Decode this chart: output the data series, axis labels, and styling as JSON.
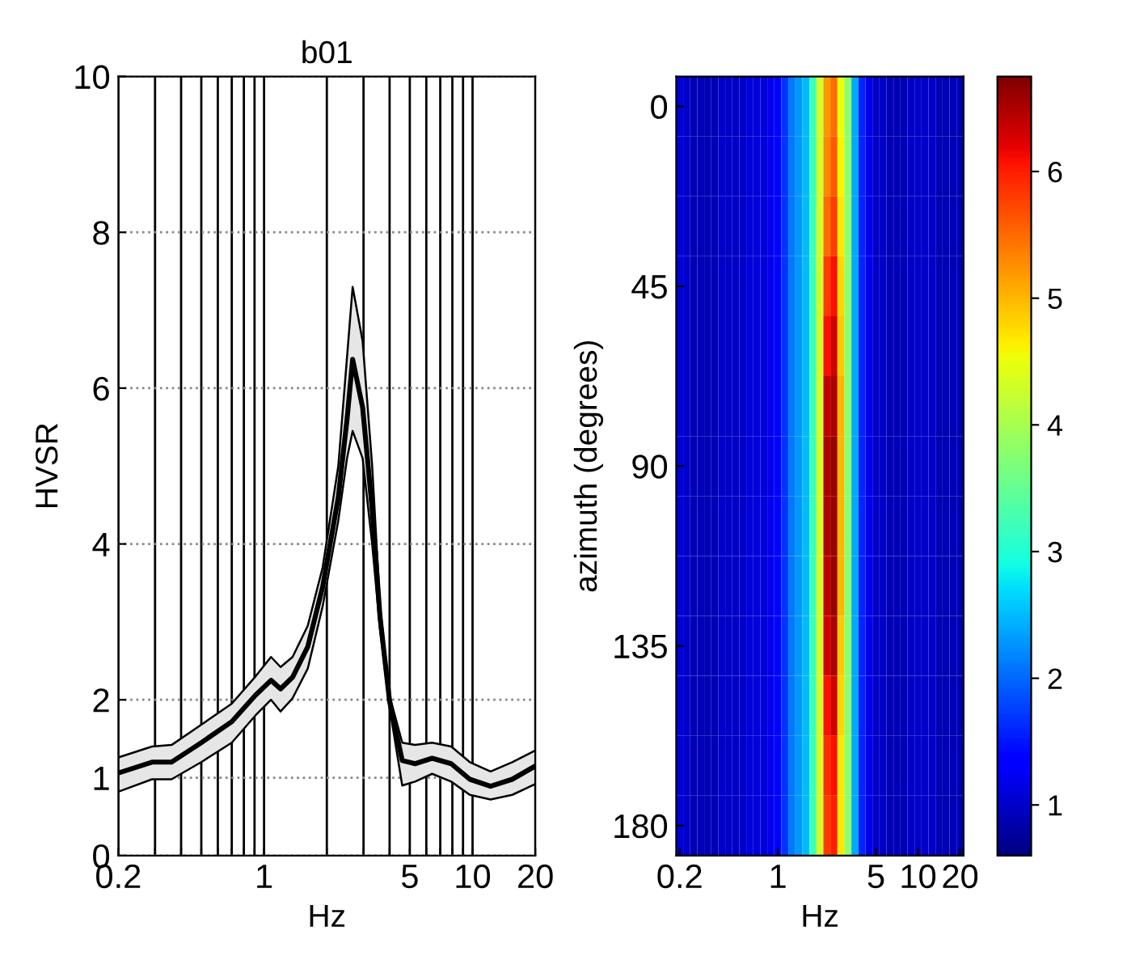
{
  "chart_data": [
    {
      "type": "line",
      "title": "b01",
      "xlabel": "Hz",
      "ylabel": "HVSR",
      "log": "x",
      "grid": true,
      "line_style": "solid",
      "marker": "none",
      "xlim": [
        0.2,
        20
      ],
      "xticks": [
        0.2,
        {
          "value": 0.3,
          "label": null
        },
        {
          "value": 0.4,
          "label": null
        },
        {
          "value": 0.5,
          "label": null
        },
        {
          "value": 0.6,
          "label": null
        },
        {
          "value": 0.7,
          "label": null
        },
        {
          "value": 0.8,
          "label": null
        },
        {
          "value": 0.9,
          "label": null
        },
        1,
        {
          "value": 2,
          "label": null
        },
        {
          "value": 3,
          "label": null
        },
        {
          "value": 4,
          "label": null
        },
        5,
        {
          "value": 6,
          "label": null
        },
        {
          "value": 7,
          "label": null
        },
        {
          "value": 8,
          "label": null
        },
        {
          "value": 9,
          "label": null
        },
        10,
        20
      ],
      "ylim": [
        0,
        10
      ],
      "yticks": [
        0,
        1,
        2,
        4,
        6,
        8,
        10
      ],
      "x": [
        0.2,
        0.29,
        0.36,
        0.5,
        0.7,
        0.91,
        1.08,
        1.2,
        1.37,
        1.62,
        1.91,
        2.27,
        2.5,
        2.66,
        2.97,
        3.3,
        3.6,
        4.0,
        4.6,
        5.3,
        6.4,
        7.9,
        9.7,
        12.2,
        15.5,
        20
      ],
      "series": [
        {
          "color": "#000000",
          "values": [
            1.06,
            1.2,
            1.2,
            1.45,
            1.72,
            2.06,
            2.25,
            2.14,
            2.29,
            2.68,
            3.45,
            4.6,
            5.6,
            6.37,
            5.75,
            4.45,
            3.06,
            1.98,
            1.22,
            1.18,
            1.25,
            1.18,
            0.98,
            0.89,
            0.98,
            1.15
          ],
          "upper": [
            1.26,
            1.4,
            1.42,
            1.68,
            1.95,
            2.3,
            2.55,
            2.42,
            2.55,
            2.95,
            3.7,
            5.0,
            6.4,
            7.3,
            6.6,
            5.0,
            3.2,
            2.05,
            1.45,
            1.42,
            1.45,
            1.4,
            1.2,
            1.08,
            1.2,
            1.35
          ],
          "lower": [
            0.82,
            0.98,
            0.98,
            1.2,
            1.45,
            1.8,
            2.0,
            1.85,
            2.02,
            2.4,
            3.2,
            4.3,
            5.1,
            5.45,
            5.1,
            4.0,
            2.9,
            1.9,
            0.9,
            0.95,
            1.05,
            0.95,
            0.78,
            0.72,
            0.78,
            0.92
          ]
        }
      ]
    },
    {
      "type": "heatmap",
      "xlabel": "Hz",
      "ylabel": "azimuth (degrees)",
      "clim": [
        0.6,
        6.75
      ],
      "cticks": [
        1,
        2,
        3,
        4,
        5,
        6
      ],
      "categories": [
        "0.2",
        null,
        null,
        null,
        null,
        null,
        null,
        null,
        null,
        null,
        null,
        null,
        null,
        null,
        "1",
        null,
        null,
        null,
        null,
        null,
        null,
        null,
        null,
        null,
        null,
        null,
        null,
        null,
        "5",
        null,
        null,
        null,
        null,
        null,
        "10",
        null,
        null,
        null,
        null,
        null,
        "20"
      ],
      "y_categories": [
        "0",
        null,
        null,
        "45",
        null,
        null,
        "90",
        null,
        null,
        "135",
        null,
        null,
        "180"
      ],
      "cells": [
        [
          1.1,
          1.0,
          0.9,
          0.9,
          0.9,
          0.9,
          1.0,
          1.0,
          1.0,
          1.0,
          1.1,
          1.1,
          1.1,
          1.2,
          1.4,
          1.7,
          2.1,
          2.3,
          2.5,
          3.2,
          4.3,
          5.2,
          5.5,
          4.5,
          3.8,
          2.4,
          1.6,
          1.2,
          1.0,
          1.0,
          0.9,
          0.9,
          0.9,
          1.0,
          1.0,
          1.0,
          1.0,
          0.9,
          0.9,
          0.9,
          0.9
        ],
        [
          1.1,
          1.0,
          0.9,
          0.9,
          0.9,
          0.9,
          1.0,
          1.0,
          1.0,
          1.0,
          1.1,
          1.1,
          1.1,
          1.2,
          1.4,
          1.7,
          2.1,
          2.3,
          2.5,
          3.2,
          4.3,
          5.3,
          5.6,
          4.6,
          3.8,
          2.4,
          1.6,
          1.2,
          1.0,
          1.0,
          0.9,
          0.9,
          0.9,
          1.0,
          1.0,
          1.0,
          1.0,
          0.9,
          0.9,
          0.9,
          0.9
        ],
        [
          1.1,
          1.0,
          0.9,
          0.9,
          0.9,
          0.9,
          1.0,
          1.0,
          1.0,
          1.0,
          1.1,
          1.1,
          1.1,
          1.2,
          1.4,
          1.7,
          2.1,
          2.3,
          2.5,
          3.2,
          4.3,
          5.5,
          5.8,
          4.7,
          3.8,
          2.4,
          1.6,
          1.2,
          1.0,
          1.0,
          0.9,
          0.9,
          0.9,
          1.0,
          1.0,
          1.0,
          1.0,
          0.9,
          0.9,
          0.9,
          0.9
        ],
        [
          1.1,
          1.0,
          0.9,
          0.9,
          0.9,
          0.9,
          1.0,
          1.0,
          1.0,
          1.0,
          1.1,
          1.1,
          1.1,
          1.2,
          1.4,
          1.7,
          2.1,
          2.3,
          2.5,
          3.2,
          4.3,
          5.8,
          6.1,
          4.8,
          3.8,
          2.4,
          1.6,
          1.2,
          1.0,
          1.0,
          0.9,
          0.9,
          0.9,
          1.0,
          1.0,
          1.0,
          1.0,
          0.9,
          0.9,
          0.9,
          0.9
        ],
        [
          1.1,
          1.0,
          0.9,
          0.9,
          0.9,
          0.9,
          1.0,
          1.0,
          1.0,
          1.0,
          1.1,
          1.1,
          1.1,
          1.2,
          1.4,
          1.7,
          2.1,
          2.3,
          2.5,
          3.2,
          4.3,
          6.1,
          6.3,
          4.9,
          3.8,
          2.4,
          1.6,
          1.2,
          1.0,
          1.0,
          0.9,
          0.9,
          0.9,
          1.0,
          1.0,
          1.0,
          1.0,
          0.9,
          0.9,
          0.9,
          0.9
        ],
        [
          1.1,
          1.0,
          0.9,
          0.9,
          0.9,
          0.9,
          1.0,
          1.0,
          1.0,
          1.0,
          1.1,
          1.1,
          1.1,
          1.2,
          1.4,
          1.7,
          2.1,
          2.3,
          2.5,
          3.2,
          4.3,
          6.4,
          6.5,
          5.0,
          3.8,
          2.4,
          1.6,
          1.2,
          1.0,
          1.0,
          0.9,
          0.9,
          0.9,
          1.0,
          1.0,
          1.0,
          1.0,
          0.9,
          0.9,
          0.9,
          0.9
        ],
        [
          1.1,
          1.0,
          0.9,
          0.9,
          0.9,
          0.9,
          1.0,
          1.0,
          1.0,
          1.0,
          1.1,
          1.1,
          1.1,
          1.2,
          1.4,
          1.7,
          2.1,
          2.3,
          2.5,
          3.2,
          4.3,
          6.5,
          6.6,
          5.0,
          3.8,
          2.4,
          1.6,
          1.2,
          1.0,
          1.0,
          0.9,
          0.9,
          0.9,
          1.0,
          1.0,
          1.0,
          1.0,
          0.9,
          0.9,
          0.9,
          0.9
        ],
        [
          1.1,
          1.0,
          0.9,
          0.9,
          0.9,
          0.9,
          1.0,
          1.0,
          1.0,
          1.0,
          1.1,
          1.1,
          1.1,
          1.2,
          1.4,
          1.7,
          2.1,
          2.3,
          2.5,
          3.2,
          4.3,
          6.5,
          6.6,
          5.0,
          3.8,
          2.4,
          1.6,
          1.2,
          1.0,
          1.0,
          0.9,
          0.9,
          0.9,
          1.0,
          1.0,
          1.0,
          1.0,
          0.9,
          0.9,
          0.9,
          0.9
        ],
        [
          1.1,
          1.0,
          0.9,
          0.9,
          0.9,
          0.9,
          1.0,
          1.0,
          1.0,
          1.0,
          1.1,
          1.1,
          1.1,
          1.2,
          1.4,
          1.7,
          2.1,
          2.3,
          2.5,
          3.2,
          4.3,
          6.4,
          6.6,
          5.0,
          3.8,
          2.4,
          1.6,
          1.2,
          1.0,
          1.0,
          0.9,
          0.9,
          0.9,
          1.0,
          1.0,
          1.0,
          1.0,
          0.9,
          0.9,
          0.9,
          0.9
        ],
        [
          1.1,
          1.0,
          0.9,
          0.9,
          0.9,
          0.9,
          1.0,
          1.0,
          1.0,
          1.0,
          1.1,
          1.1,
          1.1,
          1.2,
          1.4,
          1.7,
          2.1,
          2.3,
          2.5,
          3.2,
          4.3,
          6.3,
          6.5,
          4.9,
          3.8,
          2.4,
          1.6,
          1.2,
          1.0,
          1.0,
          0.9,
          0.9,
          0.9,
          1.0,
          1.0,
          1.0,
          1.0,
          0.9,
          0.9,
          0.9,
          0.9
        ],
        [
          1.1,
          1.0,
          0.9,
          0.9,
          0.9,
          0.9,
          1.0,
          1.0,
          1.0,
          1.0,
          1.1,
          1.1,
          1.1,
          1.2,
          1.4,
          1.7,
          2.1,
          2.3,
          2.5,
          3.2,
          4.3,
          6.1,
          6.3,
          4.8,
          3.8,
          2.4,
          1.6,
          1.2,
          1.0,
          1.0,
          0.9,
          0.9,
          0.9,
          1.0,
          1.0,
          1.0,
          1.0,
          0.9,
          0.9,
          0.9,
          0.9
        ],
        [
          1.1,
          1.0,
          0.9,
          0.9,
          0.9,
          0.9,
          1.0,
          1.0,
          1.0,
          1.0,
          1.1,
          1.1,
          1.1,
          1.2,
          1.4,
          1.7,
          2.1,
          2.3,
          2.5,
          3.2,
          4.3,
          5.9,
          6.1,
          4.7,
          3.8,
          2.4,
          1.6,
          1.2,
          1.0,
          1.0,
          0.9,
          0.9,
          0.9,
          1.0,
          1.0,
          1.0,
          1.0,
          0.9,
          0.9,
          0.9,
          0.9
        ],
        [
          1.1,
          1.0,
          0.9,
          0.9,
          0.9,
          0.9,
          1.0,
          1.0,
          1.0,
          1.0,
          1.1,
          1.1,
          1.1,
          1.2,
          1.4,
          1.7,
          2.1,
          2.3,
          2.5,
          3.2,
          4.3,
          5.8,
          6.0,
          4.7,
          3.8,
          2.4,
          1.6,
          1.2,
          1.0,
          1.0,
          0.9,
          0.9,
          0.9,
          1.0,
          1.0,
          1.0,
          1.0,
          0.9,
          0.9,
          0.9,
          0.9
        ]
      ]
    }
  ]
}
